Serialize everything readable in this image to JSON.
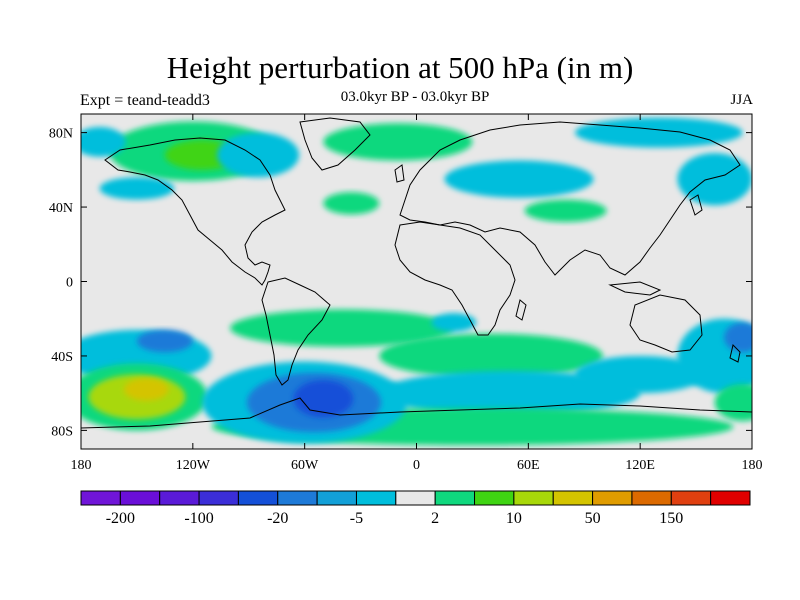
{
  "title": "Height perturbation at 500 hPa (in m)",
  "left_label": "Expt = teand-teadd3",
  "center_label": "03.0kyr BP - 03.0kyr BP",
  "right_label": "JJA",
  "colors": {
    "background_field": "#e8e8e8",
    "coast": "#000000"
  },
  "map": {
    "projection": "cylindrical-equidistant",
    "lon_range": [
      -180,
      180
    ],
    "lat_range": [
      -90,
      90
    ],
    "x_ticks": [
      {
        "lon": -180,
        "label": "180"
      },
      {
        "lon": -120,
        "label": "120W"
      },
      {
        "lon": -60,
        "label": "60W"
      },
      {
        "lon": 0,
        "label": "0"
      },
      {
        "lon": 60,
        "label": "60E"
      },
      {
        "lon": 120,
        "label": "120E"
      },
      {
        "lon": 180,
        "label": "180"
      }
    ],
    "y_ticks": [
      {
        "lat": 80,
        "label": "80N"
      },
      {
        "lat": 40,
        "label": "40N"
      },
      {
        "lat": 0,
        "label": "0"
      },
      {
        "lat": -40,
        "label": "40S"
      },
      {
        "lat": -80,
        "label": "80S"
      }
    ]
  },
  "colorbar": {
    "colors": [
      "#7015d8",
      "#6a0fd8",
      "#5a1ad8",
      "#3b2ed8",
      "#1450d8",
      "#1e7ad8",
      "#12a0d8",
      "#00bedc",
      "#e8e8e8",
      "#10d87e",
      "#3fd412",
      "#a8d80a",
      "#d4c400",
      "#e09c00",
      "#dc6a00",
      "#e04010",
      "#e00000"
    ],
    "labels": [
      {
        "after_box": 1,
        "text": "-200"
      },
      {
        "after_box": 3,
        "text": "-100"
      },
      {
        "after_box": 5,
        "text": "-20"
      },
      {
        "after_box": 7,
        "text": "-5"
      },
      {
        "after_box": 9,
        "text": "2"
      },
      {
        "after_box": 11,
        "text": "10"
      },
      {
        "after_box": 13,
        "text": "50"
      },
      {
        "after_box": 15,
        "text": "150"
      }
    ]
  },
  "field_blobs": [
    {
      "color": "#10d87e",
      "lon": -120,
      "lat": 70,
      "rx": 45,
      "ry": 16
    },
    {
      "color": "#3fd412",
      "lon": -115,
      "lat": 68,
      "rx": 20,
      "ry": 8
    },
    {
      "color": "#00bedc",
      "lon": -85,
      "lat": 68,
      "rx": 22,
      "ry": 12
    },
    {
      "color": "#10d87e",
      "lon": -10,
      "lat": 75,
      "rx": 40,
      "ry": 10
    },
    {
      "color": "#00bedc",
      "lon": 55,
      "lat": 55,
      "rx": 40,
      "ry": 10
    },
    {
      "color": "#10d87e",
      "lon": 80,
      "lat": 38,
      "rx": 22,
      "ry": 6
    },
    {
      "color": "#00bedc",
      "lon": 130,
      "lat": 80,
      "rx": 45,
      "ry": 8
    },
    {
      "color": "#00bedc",
      "lon": 160,
      "lat": 55,
      "rx": 20,
      "ry": 14
    },
    {
      "color": "#10d87e",
      "lon": -35,
      "lat": 42,
      "rx": 15,
      "ry": 6
    },
    {
      "color": "#00bedc",
      "lon": -150,
      "lat": 50,
      "rx": 20,
      "ry": 6
    },
    {
      "color": "#00bedc",
      "lon": -170,
      "lat": 75,
      "rx": 14,
      "ry": 8
    },
    {
      "color": "#10d87e",
      "lon": -40,
      "lat": -25,
      "rx": 60,
      "ry": 10
    },
    {
      "color": "#10d87e",
      "lon": 40,
      "lat": -40,
      "rx": 60,
      "ry": 12
    },
    {
      "color": "#00bedc",
      "lon": 20,
      "lat": -22,
      "rx": 12,
      "ry": 5
    },
    {
      "color": "#00bedc",
      "lon": 50,
      "lat": -60,
      "rx": 70,
      "ry": 12
    },
    {
      "color": "#10d87e",
      "lon": 30,
      "lat": -78,
      "rx": 140,
      "ry": 10
    },
    {
      "color": "#00bedc",
      "lon": -150,
      "lat": -40,
      "rx": 40,
      "ry": 14
    },
    {
      "color": "#1e7ad8",
      "lon": -135,
      "lat": -32,
      "rx": 15,
      "ry": 6
    },
    {
      "color": "#10d87e",
      "lon": -150,
      "lat": -62,
      "rx": 38,
      "ry": 18
    },
    {
      "color": "#a8d80a",
      "lon": -150,
      "lat": -62,
      "rx": 26,
      "ry": 12
    },
    {
      "color": "#d4c400",
      "lon": -145,
      "lat": -58,
      "rx": 12,
      "ry": 6
    },
    {
      "color": "#00bedc",
      "lon": -60,
      "lat": -65,
      "rx": 55,
      "ry": 22
    },
    {
      "color": "#1e7ad8",
      "lon": -55,
      "lat": -65,
      "rx": 36,
      "ry": 16
    },
    {
      "color": "#1450d8",
      "lon": -50,
      "lat": -63,
      "rx": 16,
      "ry": 10
    },
    {
      "color": "#00bedc",
      "lon": 165,
      "lat": -40,
      "rx": 25,
      "ry": 20
    },
    {
      "color": "#1e7ad8",
      "lon": 175,
      "lat": -30,
      "rx": 10,
      "ry": 8
    },
    {
      "color": "#10d87e",
      "lon": 175,
      "lat": -65,
      "rx": 15,
      "ry": 10
    },
    {
      "color": "#00bedc",
      "lon": 120,
      "lat": -50,
      "rx": 35,
      "ry": 10
    }
  ]
}
